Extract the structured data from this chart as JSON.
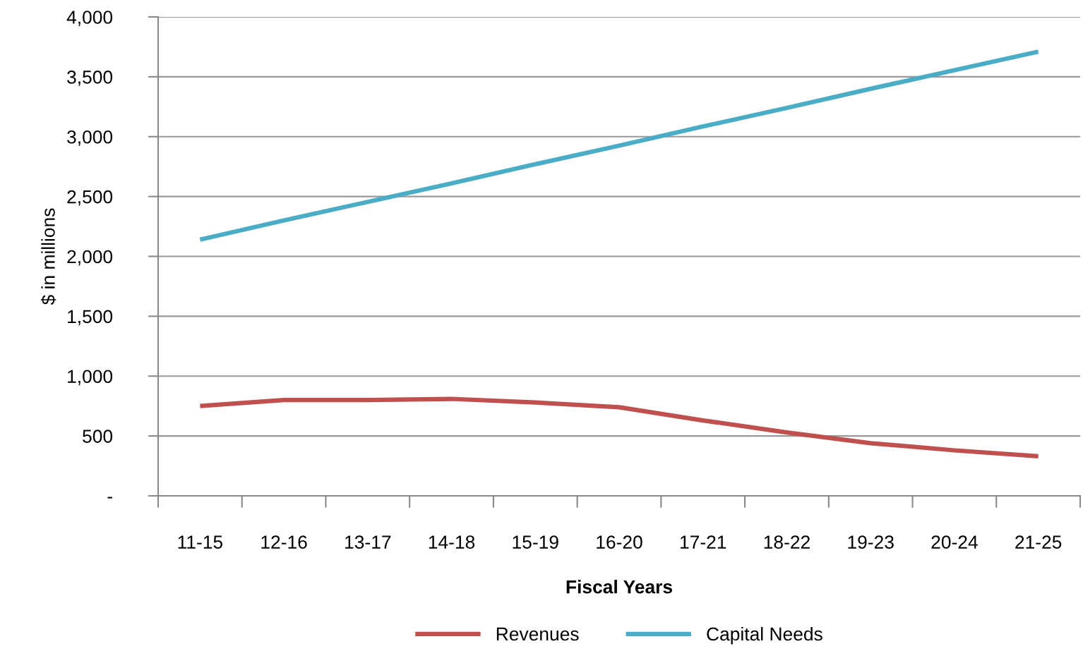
{
  "chart_data": {
    "type": "line",
    "xlabel": "Fiscal Years",
    "ylabel": "$ in millions",
    "categories": [
      "11-15",
      "12-16",
      "13-17",
      "14-18",
      "15-19",
      "16-20",
      "17-21",
      "18-22",
      "19-23",
      "20-24",
      "21-25"
    ],
    "series": [
      {
        "name": "Revenues",
        "color": "#c0504d",
        "values": [
          750,
          800,
          800,
          810,
          780,
          740,
          630,
          530,
          440,
          380,
          330
        ]
      },
      {
        "name": "Capital Needs",
        "color": "#4bacc6",
        "values": [
          2140,
          2300,
          2455,
          2610,
          2770,
          2925,
          3085,
          3240,
          3400,
          3555,
          3710
        ]
      }
    ],
    "ylim": [
      0,
      4000
    ],
    "yticks": [
      {
        "value": 0,
        "label": "-"
      },
      {
        "value": 500,
        "label": "500"
      },
      {
        "value": 1000,
        "label": "1,000"
      },
      {
        "value": 1500,
        "label": "1,500"
      },
      {
        "value": 2000,
        "label": "2,000"
      },
      {
        "value": 2500,
        "label": "2,500"
      },
      {
        "value": 3000,
        "label": "3,000"
      },
      {
        "value": 3500,
        "label": "3,500"
      },
      {
        "value": 4000,
        "label": "4,000"
      }
    ],
    "grid": "y",
    "legend": "bottom",
    "marker": "none",
    "line_style": "solid"
  }
}
